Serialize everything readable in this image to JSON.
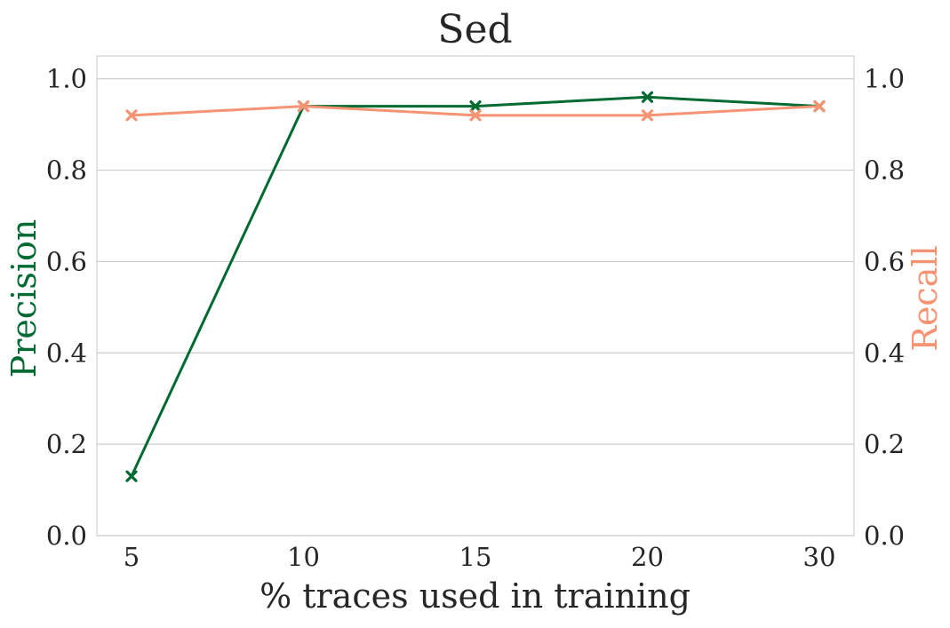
{
  "chart_data": {
    "type": "line",
    "title": "Sed",
    "xlabel": "% traces used in training",
    "ylabel_left": "Precision",
    "ylabel_right": "Recall",
    "categories": [
      "5",
      "10",
      "15",
      "20",
      "30"
    ],
    "ylim": [
      0,
      1.05
    ],
    "yticks": [
      "0.0",
      "0.2",
      "0.4",
      "0.6",
      "0.8",
      "1.0"
    ],
    "grid": true,
    "marker": "x",
    "series": [
      {
        "name": "Precision",
        "axis": "left",
        "color": "#006a32",
        "values": [
          0.13,
          0.94,
          0.94,
          0.96,
          0.94
        ]
      },
      {
        "name": "Recall",
        "axis": "right",
        "color": "#f59373",
        "values": [
          0.92,
          0.94,
          0.92,
          0.92,
          0.94
        ]
      }
    ]
  }
}
